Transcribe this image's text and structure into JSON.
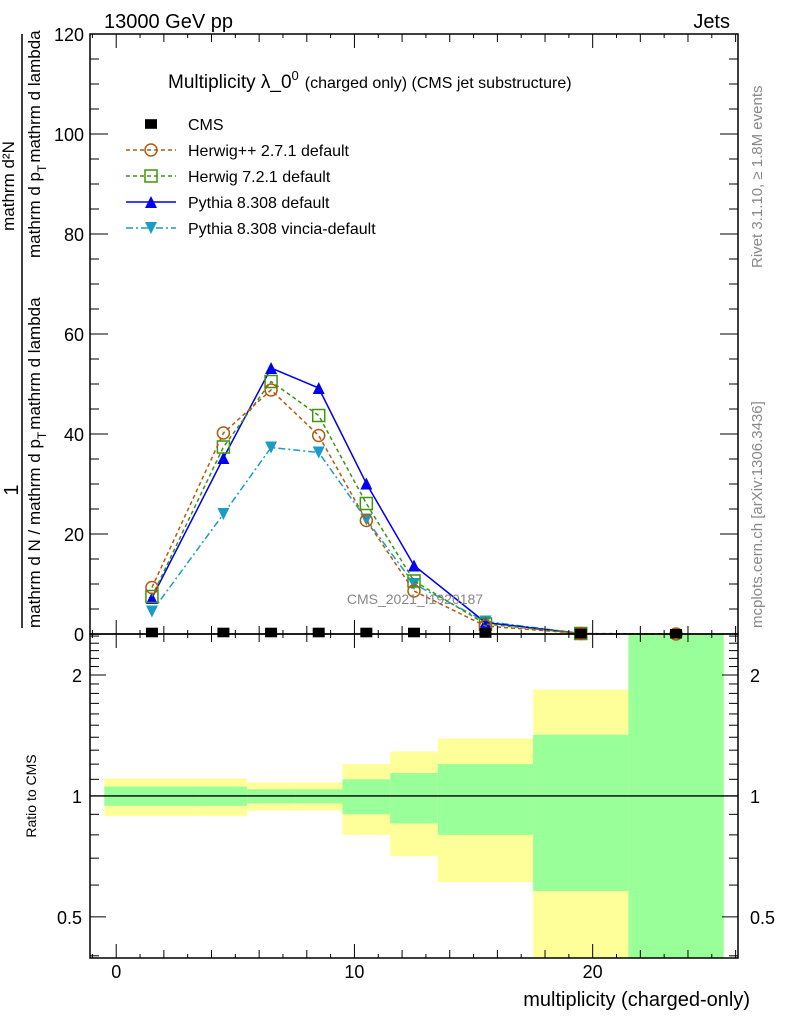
{
  "header": {
    "left": "13000 GeV pp",
    "right": "Jets"
  },
  "side_texts": {
    "rivet": "Rivet 3.1.10, ≥ 1.8M events",
    "mcplots": "mcplots.cern.ch [arXiv:1306.3436]"
  },
  "watermark": "CMS_2021_I1920187",
  "chart_data": [
    {
      "type": "line",
      "title": "Multiplicity λ_0",
      "title_sup": "0",
      "title_suffix": "(charged only) (CMS jet substructure)",
      "ylabel_parts": {
        "num1": "1",
        "den1": "mathrm d N / mathrm d p",
        "den1_sub": "T",
        "den1_end": "mathrm d lambda",
        "num2": "mathrm d²N",
        "den2": "mathrm d p",
        "den2_sub": "T",
        "den2_end": "mathrm d lambda"
      },
      "xlim": [
        -1.1,
        26.1
      ],
      "ylim": [
        0,
        120
      ],
      "yticks": [
        0,
        20,
        40,
        60,
        80,
        100,
        120
      ],
      "x": [
        1.5,
        4.5,
        6.5,
        8.5,
        10.5,
        12.5,
        15.5,
        19.5,
        23.5
      ],
      "legend_placement": "top-left",
      "series": [
        {
          "name": "CMS",
          "color": "#000000",
          "marker": "square",
          "style": "none",
          "values": [
            0.3,
            0.3,
            0.3,
            0.3,
            0.3,
            0.3,
            0.2,
            0.1,
            0.05
          ]
        },
        {
          "name": "Herwig++ 2.7.1 default",
          "color": "#b25a10",
          "marker": "circle-open",
          "style": "dashed",
          "values": [
            9.3,
            40.2,
            48.8,
            39.7,
            22.7,
            8.6,
            1.6,
            0.1,
            0.0
          ]
        },
        {
          "name": "Herwig 7.2.1 default",
          "color": "#3d960c",
          "marker": "square-open",
          "style": "dashed",
          "values": [
            7.5,
            37.4,
            50.5,
            43.7,
            26.1,
            10.6,
            2.0,
            0.1,
            null
          ]
        },
        {
          "name": "Pythia 8.308 default",
          "color": "#0000ee",
          "marker": "triangle-up",
          "style": "solid",
          "values": [
            7.2,
            35.2,
            53.2,
            49.2,
            30.1,
            13.7,
            2.3,
            0.1,
            null
          ]
        },
        {
          "name": "Pythia 8.308 vincia-default",
          "color": "#1a9cc6",
          "marker": "triangle-down",
          "style": "dashdot",
          "values": [
            4.5,
            24.0,
            37.3,
            36.3,
            22.9,
            10.0,
            2.5,
            0.1,
            null
          ]
        }
      ]
    },
    {
      "type": "area",
      "ylabel": "Ratio to CMS",
      "xlabel": "multiplicity (charged-only)",
      "xticks": [
        0,
        10,
        20
      ],
      "ylim": [
        0.395,
        2.53
      ],
      "yscale": "log",
      "yticks": [
        0.5,
        1,
        2
      ],
      "bins": [
        [
          -0.5,
          3.5
        ],
        [
          3.5,
          5.5
        ],
        [
          5.5,
          7.5
        ],
        [
          7.5,
          9.5
        ],
        [
          9.5,
          11.5
        ],
        [
          11.5,
          13.5
        ],
        [
          13.5,
          17.5
        ],
        [
          17.5,
          21.5
        ],
        [
          21.5,
          25.5
        ]
      ],
      "band_inner": {
        "color": "#99ff99",
        "lo": [
          0.945,
          0.945,
          0.958,
          0.958,
          0.9,
          0.854,
          0.8,
          0.58,
          0.3
        ],
        "hi": [
          1.055,
          1.055,
          1.039,
          1.039,
          1.1,
          1.14,
          1.2,
          1.42,
          3.0
        ]
      },
      "band_outer": {
        "color": "#ffff99",
        "lo": [
          0.892,
          0.892,
          0.92,
          0.92,
          0.8,
          0.708,
          0.61,
          0.3,
          0.3
        ],
        "hi": [
          1.105,
          1.105,
          1.08,
          1.08,
          1.2,
          1.29,
          1.39,
          1.84,
          3.0
        ]
      },
      "reference_line": 1
    }
  ]
}
